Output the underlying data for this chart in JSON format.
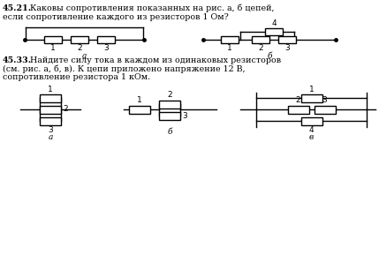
{
  "bg_color": "#ffffff",
  "line_color": "#000000",
  "t1_num": "45.21.",
  "t1_text": "Каковы сопротивления показанных на рис. а, б цепей,",
  "t1_line2": "если сопротивление каждого из резисторов 1 Ом?",
  "t2_num": "45.33.",
  "t2_text": "Найдите силу тока в каждом из одинаковых резисторов",
  "t2_line2": "(см. рис. а, б, в). К цепи приложено напряжение 12 В,",
  "t2_line3": "сопротивление резистора 1 кОм.",
  "la": "а",
  "lb": "б",
  "lv": "в"
}
